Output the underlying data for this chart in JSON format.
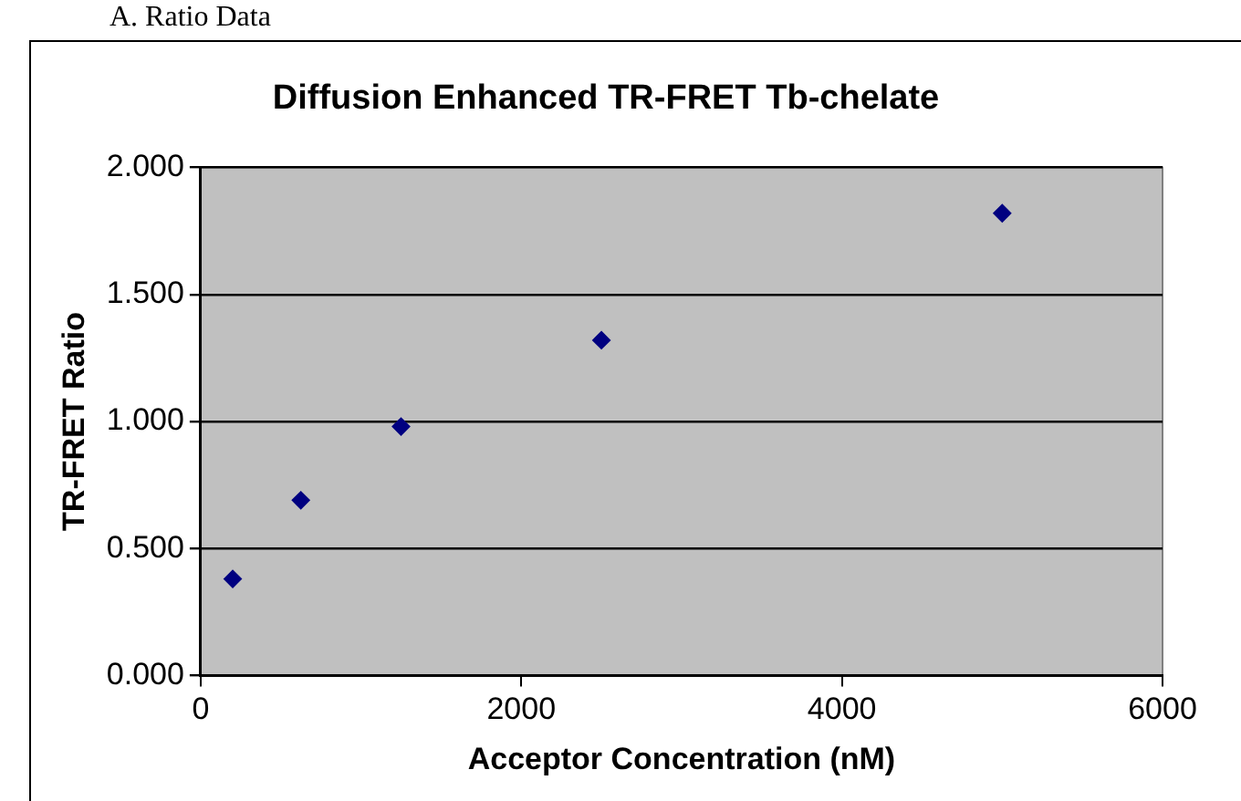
{
  "chart_data": {
    "type": "scatter",
    "title": "Diffusion Enhanced TR-FRET Tb-chelate",
    "xlabel": "Acceptor Concentration (nM)",
    "ylabel": "TR-FRET Ratio",
    "annotations": [
      "A.  Ratio Data"
    ],
    "x": [
      200,
      625,
      1250,
      2500,
      5000
    ],
    "series": [
      {
        "color": "#000080",
        "values": [
          0.38,
          0.69,
          0.98,
          1.32,
          1.82
        ]
      }
    ],
    "xlim": [
      0,
      6000
    ],
    "xticks": [
      0,
      2000,
      4000,
      6000
    ],
    "ylim": [
      0,
      2
    ],
    "yticks": [
      {
        "value": 0,
        "label": "0.000"
      },
      {
        "value": 0.5,
        "label": "0.500"
      },
      {
        "value": 1,
        "label": "1.000"
      },
      {
        "value": 1.5,
        "label": "1.500"
      },
      {
        "value": 2,
        "label": "2.000"
      }
    ],
    "grid": "y",
    "legend": false,
    "marker": "diamond"
  }
}
